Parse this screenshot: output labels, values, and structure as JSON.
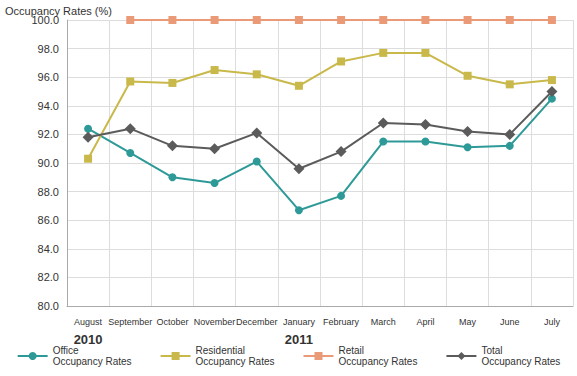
{
  "chart_data": {
    "type": "line",
    "title": "Occupancy Rates (%)",
    "categories": [
      "August",
      "September",
      "October",
      "November",
      "December",
      "January",
      "February",
      "March",
      "April",
      "May",
      "June",
      "July"
    ],
    "annotations": [
      {
        "text": "2010",
        "category": "August"
      },
      {
        "text": "2011",
        "category": "January"
      }
    ],
    "series": [
      {
        "name": "Office\nOccupancy Rates",
        "color": "#2e9a98",
        "marker": "circle",
        "values": [
          92.4,
          90.7,
          89.0,
          88.6,
          90.1,
          86.7,
          87.7,
          91.5,
          91.5,
          91.1,
          91.2,
          94.5
        ]
      },
      {
        "name": "Residential\nOccupancy Rates",
        "color": "#c9b84a",
        "marker": "square",
        "values": [
          90.3,
          95.7,
          95.6,
          96.5,
          96.2,
          95.4,
          97.1,
          97.7,
          97.7,
          96.1,
          95.5,
          95.8
        ]
      },
      {
        "name": "Retail\nOccupancy Rates",
        "color": "#eb9a78",
        "marker": "square",
        "values": [
          null,
          100,
          100,
          100,
          100,
          100,
          100,
          100,
          100,
          100,
          100,
          100
        ]
      },
      {
        "name": "Total\nOccupancy Rates",
        "color": "#5b5b5b",
        "marker": "diamond",
        "values": [
          91.8,
          92.4,
          91.2,
          91.0,
          92.1,
          89.6,
          90.8,
          92.8,
          92.7,
          92.2,
          92.0,
          95.0
        ]
      }
    ],
    "ylim": [
      80,
      100
    ],
    "yticks": [
      {
        "value": 80,
        "label": "80.0"
      },
      {
        "value": 82,
        "label": "82.0"
      },
      {
        "value": 84,
        "label": "84.0"
      },
      {
        "value": 86,
        "label": "86.0"
      },
      {
        "value": 88,
        "label": "88.0"
      },
      {
        "value": 90,
        "label": "90.0"
      },
      {
        "value": 92,
        "label": "92.0"
      },
      {
        "value": 94,
        "label": "94.0"
      },
      {
        "value": 96,
        "label": "96.0"
      },
      {
        "value": 98,
        "label": "98.0"
      },
      {
        "value": 100,
        "label": "100.0"
      }
    ],
    "grid": true,
    "legend": "bottom"
  }
}
